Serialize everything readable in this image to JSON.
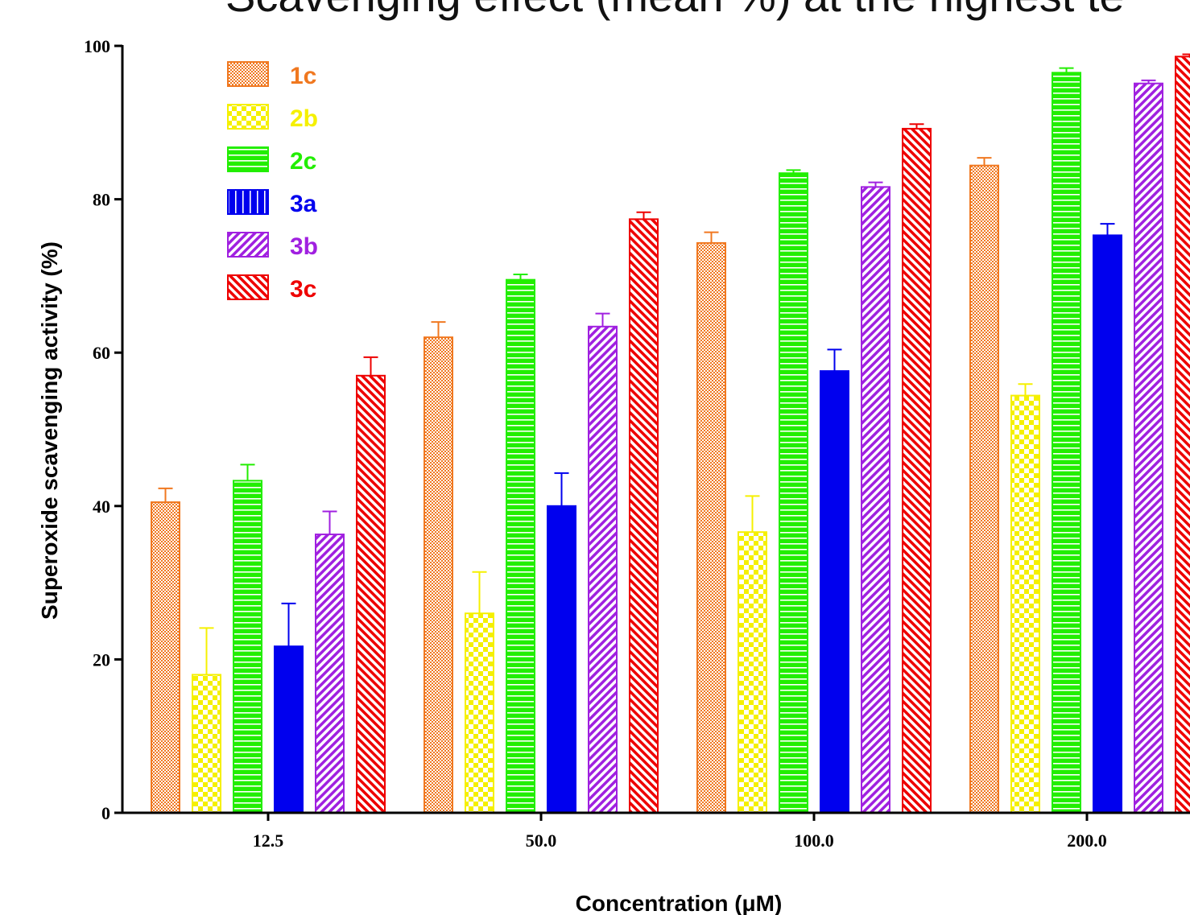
{
  "chart_data": {
    "type": "bar",
    "title": "Scavenging effect (mean %) at the highest te",
    "xlabel": "Concentration (μM)",
    "ylabel": "Superoxide scavenging activity (%)",
    "ylim": [
      0,
      100
    ],
    "yticks": [
      "0",
      "20",
      "40",
      "60",
      "80",
      "100"
    ],
    "categories": [
      "12.5",
      "50.0",
      "100.0",
      "200.0"
    ],
    "legend_position": "top-left",
    "series": [
      {
        "name": "1c",
        "color": "#f07820",
        "pattern": "checker-small",
        "values": [
          40.5,
          62.0,
          74.3,
          84.4
        ],
        "errors": [
          1.8,
          2.0,
          1.4,
          1.0
        ]
      },
      {
        "name": "2b",
        "color": "#f5f000",
        "pattern": "checker-large",
        "values": [
          18.0,
          26.0,
          36.6,
          54.4
        ],
        "errors": [
          6.1,
          5.4,
          4.7,
          1.5
        ]
      },
      {
        "name": "2c",
        "color": "#22ee00",
        "pattern": "horizontal-lines",
        "values": [
          43.3,
          69.5,
          83.4,
          96.5
        ],
        "errors": [
          2.1,
          0.7,
          0.4,
          0.6
        ]
      },
      {
        "name": "3a",
        "color": "#0000ee",
        "pattern": "vertical-lines",
        "values": [
          21.7,
          40.0,
          57.6,
          75.3
        ],
        "errors": [
          5.6,
          4.3,
          2.8,
          1.5
        ]
      },
      {
        "name": "3b",
        "color": "#a020e0",
        "pattern": "diagonal-right",
        "values": [
          36.3,
          63.4,
          81.6,
          95.1
        ],
        "errors": [
          3.0,
          1.7,
          0.6,
          0.4
        ]
      },
      {
        "name": "3c",
        "color": "#ee0000",
        "pattern": "diagonal-left",
        "values": [
          57.0,
          77.4,
          89.2,
          98.6
        ],
        "errors": [
          2.4,
          0.9,
          0.6,
          0.3
        ]
      }
    ]
  }
}
